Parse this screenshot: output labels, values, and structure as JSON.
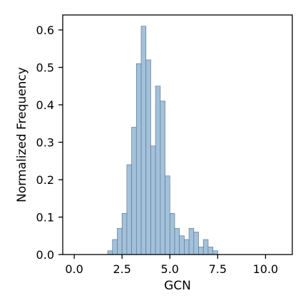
{
  "chart_data": {
    "type": "bar",
    "xlabel": "GCN",
    "ylabel": "Normalized Frequency",
    "xlim": [
      -0.6,
      11.4
    ],
    "ylim": [
      0,
      0.64
    ],
    "xticks": [
      0.0,
      2.5,
      5.0,
      7.5,
      10.0
    ],
    "xtick_labels": [
      "0.0",
      "2.5",
      "5.0",
      "7.5",
      "10.0"
    ],
    "yticks": [
      0.0,
      0.1,
      0.2,
      0.3,
      0.4,
      0.5,
      0.6
    ],
    "ytick_labels": [
      "0.0",
      "0.1",
      "0.2",
      "0.3",
      "0.4",
      "0.5",
      "0.6"
    ],
    "bin_width": 0.25,
    "bins": [
      {
        "x0": 1.75,
        "value": 0.01
      },
      {
        "x0": 2.0,
        "value": 0.04
      },
      {
        "x0": 2.25,
        "value": 0.07
      },
      {
        "x0": 2.5,
        "value": 0.11
      },
      {
        "x0": 2.75,
        "value": 0.24
      },
      {
        "x0": 3.0,
        "value": 0.34
      },
      {
        "x0": 3.25,
        "value": 0.51
      },
      {
        "x0": 3.5,
        "value": 0.61
      },
      {
        "x0": 3.75,
        "value": 0.52
      },
      {
        "x0": 4.0,
        "value": 0.29
      },
      {
        "x0": 4.25,
        "value": 0.45
      },
      {
        "x0": 4.5,
        "value": 0.41
      },
      {
        "x0": 4.75,
        "value": 0.21
      },
      {
        "x0": 5.0,
        "value": 0.11
      },
      {
        "x0": 5.25,
        "value": 0.07
      },
      {
        "x0": 5.5,
        "value": 0.05
      },
      {
        "x0": 5.75,
        "value": 0.04
      },
      {
        "x0": 6.0,
        "value": 0.07
      },
      {
        "x0": 6.25,
        "value": 0.06
      },
      {
        "x0": 6.5,
        "value": 0.02
      },
      {
        "x0": 6.75,
        "value": 0.04
      },
      {
        "x0": 7.0,
        "value": 0.02
      },
      {
        "x0": 7.25,
        "value": 0.01
      }
    ],
    "bar_color": "#a3c1da",
    "bar_edge_color": "#5f7a92",
    "grid": false,
    "legend": "none"
  }
}
